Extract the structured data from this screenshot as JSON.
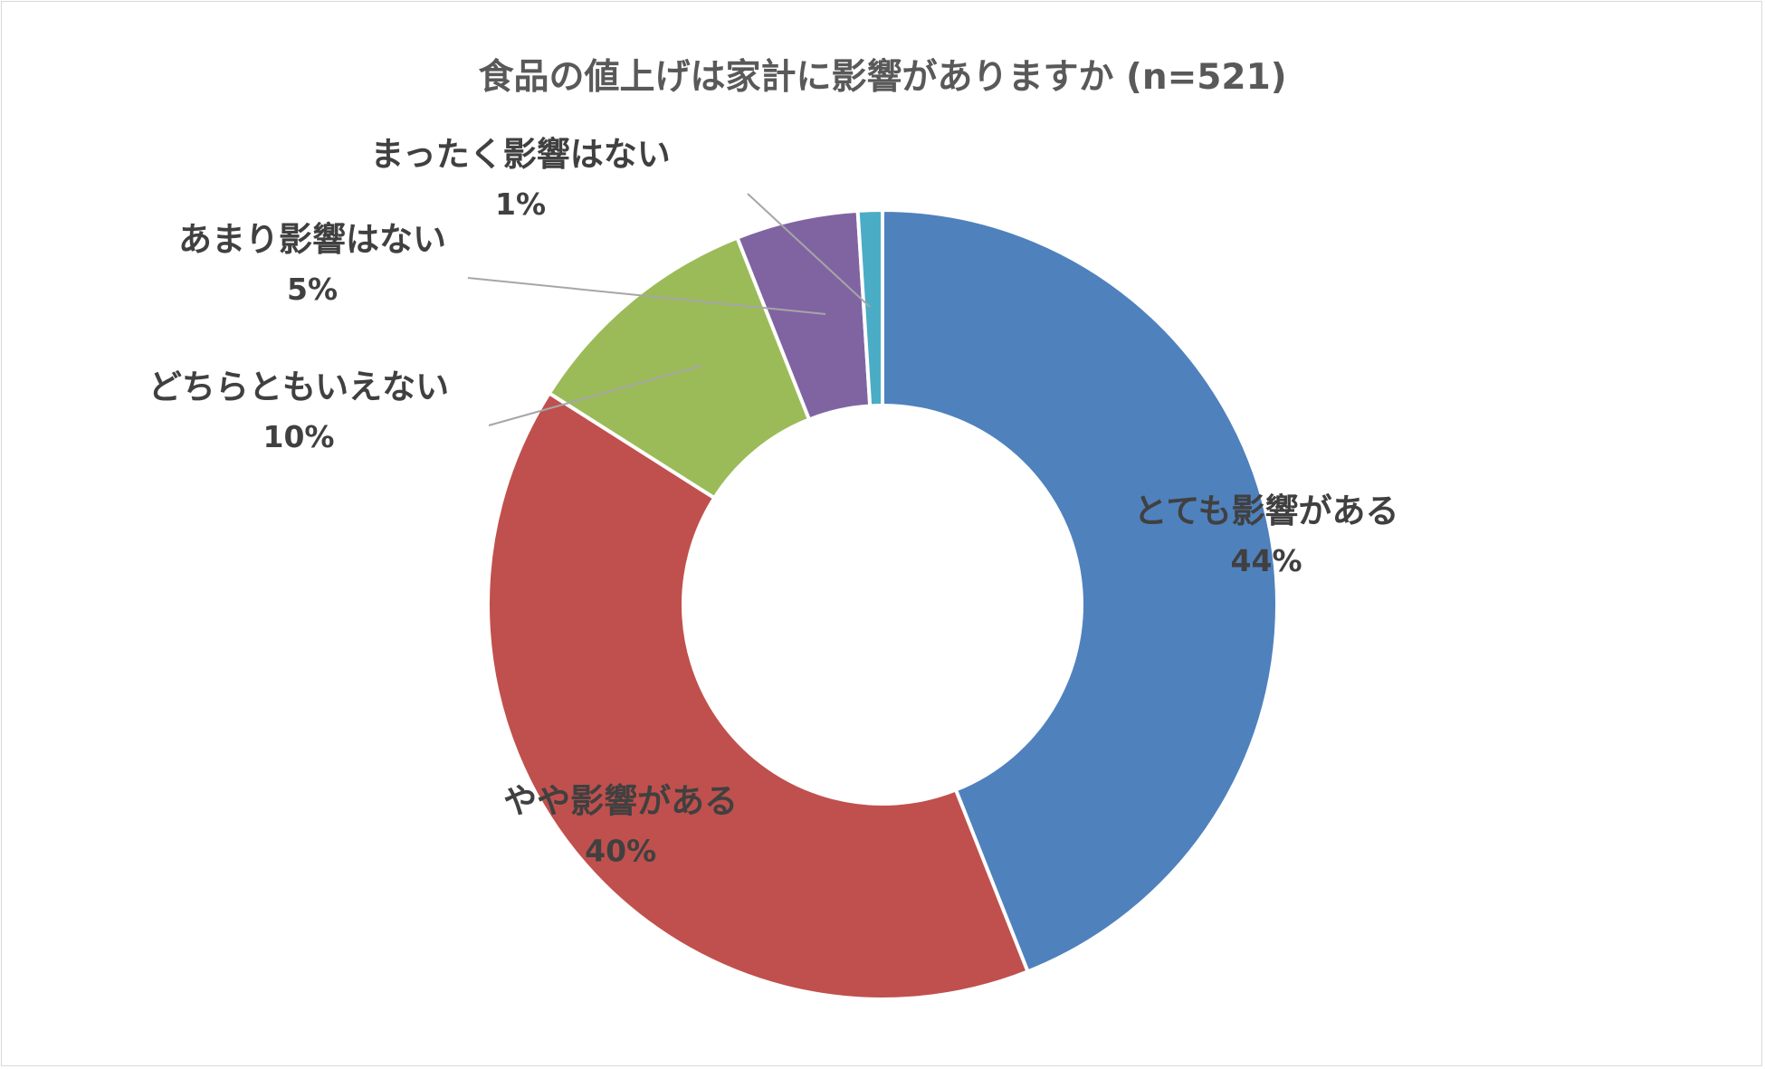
{
  "chart_data": {
    "type": "pie",
    "variant": "donut",
    "title": "食品の値上げは家計に影響がありますか (n=521)",
    "categories": [
      "とても影響がある",
      "やや影響がある",
      "どちらともいえない",
      "あまり影響はない",
      "まったく影響はない"
    ],
    "values": [
      44,
      40,
      10,
      5,
      1
    ],
    "value_labels": [
      "44%",
      "40%",
      "10%",
      "5%",
      "1%"
    ],
    "unit": "%",
    "colors": [
      "#4f81bd",
      "#c0504d",
      "#9bbb59",
      "#8064a2",
      "#4bacc6"
    ],
    "legend": "none",
    "start_angle_deg": 0,
    "direction": "clockwise"
  }
}
